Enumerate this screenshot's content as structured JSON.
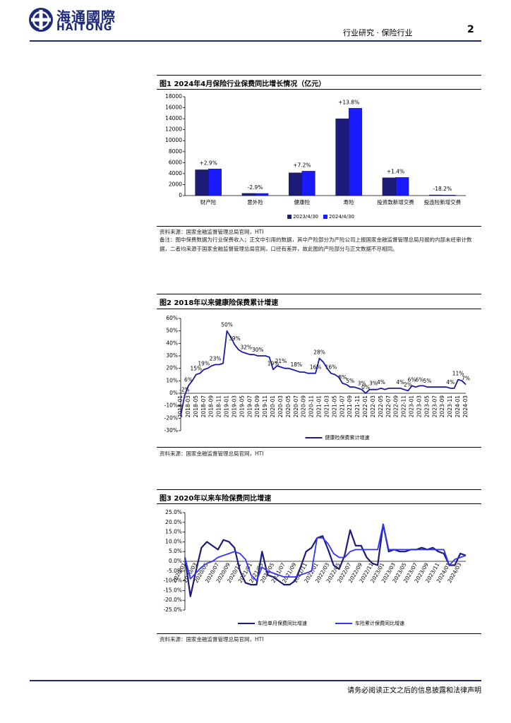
{
  "header": {
    "logo_cn": "海通國際",
    "logo_en": "HAITONG",
    "section": "行业研究 · 保险行业",
    "page": "2"
  },
  "figures": [
    {
      "source": "资料来源：国家金融监督管理总局官网，HTI",
      "note": "备注：图中保费数据为行业保费收入；正文中引用的数据，其中产险部分为产险公司上报国家金融监督管理总局月报的内部未经审计数据，二者均来源于国家金融监督管理总局官网，口径有差异，故此图的产险部分与正文数据不尽相同。"
    },
    {
      "source": "资料来源：国家金融监督管理总局官网，HTI"
    },
    {
      "source": "资料来源：国家金融监督管理总局官网，HTI"
    }
  ],
  "chart_data": [
    {
      "type": "bar",
      "title": "图1  2024年4月保险行业保费同比增长情况（亿元）",
      "categories": [
        "财产险",
        "意外险",
        "健康险",
        "寿险",
        "投资款新增交费",
        "投连险新增交费"
      ],
      "series": [
        {
          "name": "2023/4/30",
          "color": "#1c1c78",
          "values": [
            4700,
            400,
            4150,
            14000,
            3250,
            120
          ]
        },
        {
          "name": "2024/4/30",
          "color": "#1a1aff",
          "values": [
            4850,
            390,
            4450,
            15900,
            3300,
            100
          ]
        }
      ],
      "annotations": [
        "+2.9%",
        "-2.9%",
        "+7.2%",
        "+13.8%",
        "+1.4%",
        "-18.2%"
      ],
      "ylim": [
        0,
        18000
      ],
      "yticks": [
        0,
        2000,
        4000,
        6000,
        8000,
        10000,
        12000,
        14000,
        16000,
        18000
      ],
      "grid": false,
      "legend": "bottom"
    },
    {
      "type": "line",
      "title": "图2  2018年以来健康险保费累计增速",
      "categories": [
        "2018-01",
        null,
        "2018-03",
        null,
        "2018-05",
        null,
        "2018-07",
        null,
        "2018-09",
        null,
        "2018-11",
        null,
        "2019-01",
        null,
        "2019-03",
        null,
        "2019-05",
        null,
        "2019-07",
        null,
        "2019-09",
        null,
        "2019-11",
        null,
        "2020-01",
        null,
        "2020-03",
        null,
        "2020-05",
        null,
        "2020-07",
        null,
        "2020-09",
        null,
        "2020-11",
        null,
        "2021-01",
        null,
        "2021-03",
        null,
        "2021-05",
        null,
        "2021-07",
        null,
        "2021-09",
        null,
        "2021-11",
        null,
        "2022-01",
        null,
        "2022-03",
        null,
        "2022-05",
        null,
        "2022-07",
        null,
        "2022-09",
        null,
        "2022-11",
        null,
        "2023-01",
        null,
        "2023-03",
        null,
        "2023-05",
        null,
        "2023-07",
        null,
        "2023-09",
        null,
        "2023-11",
        null,
        "2024-01",
        null,
        "2024-03"
      ],
      "series": [
        {
          "name": "健康险保费累计增速",
          "color": "#1a1aa6",
          "values": [
            -18,
            -2,
            6,
            10,
            15,
            16,
            19,
            20,
            22,
            23,
            23,
            24,
            50,
            45,
            39,
            35,
            33,
            32,
            31,
            31,
            30,
            30,
            30,
            29,
            19,
            22,
            21,
            20,
            20,
            19,
            18,
            17,
            17,
            16,
            16,
            16,
            28,
            25,
            20,
            16,
            15,
            13,
            8,
            7,
            5,
            5,
            4,
            3,
            0,
            3,
            3,
            3,
            4,
            3,
            4,
            4,
            4,
            4,
            3,
            2,
            6,
            5,
            6,
            6,
            5,
            5,
            5,
            5,
            5,
            5,
            4,
            4,
            11,
            10,
            7
          ],
          "value_labels": [
            null,
            "-2%",
            "6%",
            null,
            "15%",
            null,
            "19%",
            null,
            null,
            "23%",
            null,
            null,
            "50%",
            null,
            "39%",
            null,
            null,
            "32%",
            null,
            null,
            "30%",
            null,
            null,
            null,
            "19%",
            null,
            "21%",
            null,
            null,
            null,
            "18%",
            null,
            null,
            null,
            null,
            "16%",
            "28%",
            null,
            null,
            "16%",
            null,
            null,
            "8%",
            null,
            "5%",
            null,
            null,
            "3%",
            "0%",
            null,
            "3%",
            null,
            "4%",
            null,
            null,
            null,
            null,
            "4%",
            null,
            "2%",
            "6%",
            null,
            "6%",
            null,
            "5%",
            null,
            null,
            null,
            null,
            null,
            "4%",
            null,
            "11%",
            null,
            "7%"
          ]
        }
      ],
      "ylim": [
        -30,
        60
      ],
      "yticks": [
        {
          "value": -30,
          "label": "-30%"
        },
        {
          "value": -20,
          "label": "-20%"
        },
        {
          "value": -10,
          "label": "-10%"
        },
        {
          "value": 0,
          "label": "0%"
        },
        {
          "value": 10,
          "label": "10%"
        },
        {
          "value": 20,
          "label": "20%"
        },
        {
          "value": 30,
          "label": "30%"
        },
        {
          "value": 40,
          "label": "40%"
        },
        {
          "value": 50,
          "label": "50%"
        },
        {
          "value": 60,
          "label": "60%"
        }
      ],
      "grid": false,
      "legend": "bottom"
    },
    {
      "type": "line",
      "title": "图3  2020年以来车险保费同比增速",
      "categories": [
        "2020/01",
        null,
        "2020/03",
        null,
        "2020/05",
        null,
        "2020/07",
        null,
        "2020/09",
        null,
        "2020/11",
        null,
        "2021/01",
        null,
        "2021/03",
        null,
        "2021/05",
        null,
        "2021/07",
        null,
        "2021/09",
        null,
        "2021/11",
        null,
        "2022/01",
        null,
        "2022/03",
        null,
        "2022/05",
        null,
        "2022/07",
        null,
        "2022/09",
        null,
        "2022/11",
        null,
        "2023/01",
        null,
        "2023/03",
        null,
        "2023/05",
        null,
        "2023/07",
        null,
        "2023/09",
        null,
        "2023/11",
        null,
        "2024/01",
        null,
        "2024/03",
        null
      ],
      "series": [
        {
          "name": "车险单月保费同比增速",
          "color": "#1c1c78",
          "values": [
            2,
            -18,
            -5,
            7,
            10,
            8,
            6,
            11,
            10,
            7,
            -5,
            -11,
            -12,
            -12,
            5,
            -7,
            -8,
            -10,
            -12,
            -12,
            -10,
            -3,
            5,
            7,
            12,
            13,
            6,
            -2,
            -4,
            3,
            16,
            8,
            8,
            2,
            -1,
            -2,
            19,
            5,
            6,
            5,
            5,
            6,
            6,
            7,
            6,
            7,
            5,
            4,
            -2,
            -2,
            4,
            3
          ]
        },
        {
          "name": "车险累计保费同比增速",
          "color": "#3333ff",
          "values": [
            2,
            -9,
            -6,
            -3,
            -1,
            0,
            2,
            3,
            4,
            5,
            4,
            1,
            -7,
            -10,
            -3,
            -5,
            -6,
            -7,
            -8,
            -8,
            -8,
            -7,
            -6,
            -5,
            12,
            12,
            9,
            4,
            2,
            2,
            5,
            6,
            6,
            6,
            6,
            6,
            19,
            6,
            6,
            6,
            6,
            6,
            6,
            6,
            6,
            6,
            6,
            6,
            -2,
            1,
            2,
            3
          ]
        }
      ],
      "ylim": [
        -25,
        25
      ],
      "yticks": [
        {
          "value": -25,
          "label": "-25.0%"
        },
        {
          "value": -20,
          "label": "-20.0%"
        },
        {
          "value": -15,
          "label": "-15.0%"
        },
        {
          "value": -10,
          "label": "-10.0%"
        },
        {
          "value": -5,
          "label": "-5.0%"
        },
        {
          "value": 0,
          "label": "0.0%"
        },
        {
          "value": 5,
          "label": "5.0%"
        },
        {
          "value": 10,
          "label": "10.0%"
        },
        {
          "value": 15,
          "label": "15.0%"
        },
        {
          "value": 20,
          "label": "20.0%"
        },
        {
          "value": 25,
          "label": "25.0%"
        }
      ],
      "grid": false,
      "legend": "bottom"
    }
  ],
  "footer": "请务必阅读正文之后的信息披露和法律声明"
}
